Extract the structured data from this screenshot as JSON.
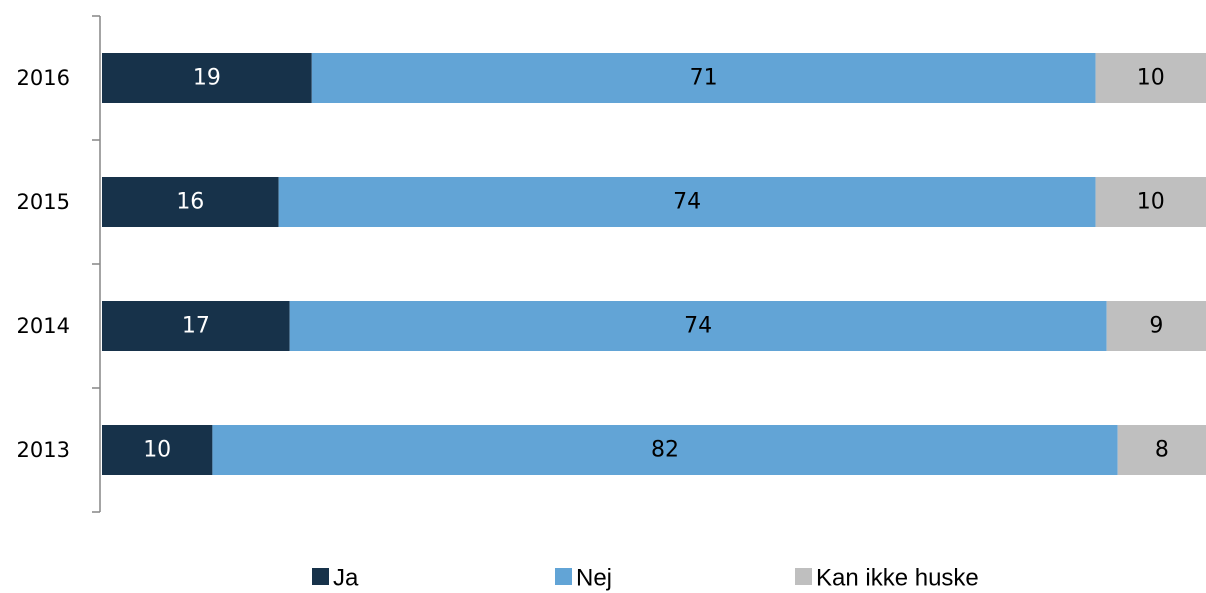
{
  "chart_data": {
    "type": "bar",
    "orientation": "horizontal",
    "stacked": true,
    "categories": [
      "2016",
      "2015",
      "2014",
      "2013"
    ],
    "series": [
      {
        "name": "Ja",
        "values": [
          19,
          16,
          17,
          10
        ],
        "color": "#17324a",
        "label_color": "#ffffff"
      },
      {
        "name": "Nej",
        "values": [
          71,
          74,
          74,
          82
        ],
        "color": "#62a4d6",
        "label_color": "#000000"
      },
      {
        "name": "Kan ikke huske",
        "values": [
          10,
          10,
          9,
          8
        ],
        "color": "#bfbfbf",
        "label_color": "#000000"
      }
    ],
    "xlim": [
      0,
      100
    ],
    "grid": false,
    "legend_position": "bottom"
  }
}
